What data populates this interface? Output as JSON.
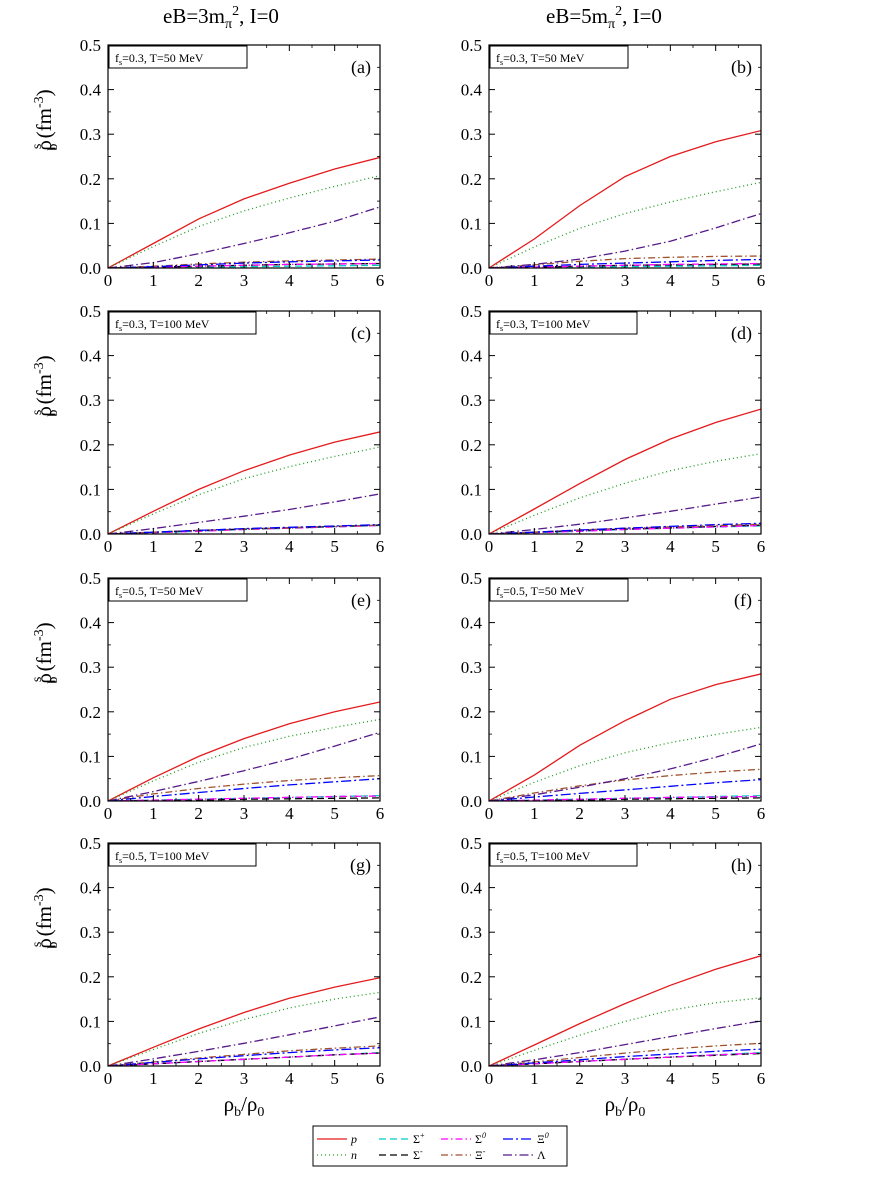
{
  "column_titles": [
    {
      "base": "eB=3m",
      "sub": "π",
      "sup": "2",
      "tail": ", I=0"
    },
    {
      "base": "eB=5m",
      "sub": "π",
      "sup": "2",
      "tail": ", I=0"
    }
  ],
  "axes": {
    "xlabel": {
      "main": "ρ",
      "sub1": "b",
      "slash": "/ρ",
      "sub2": "0"
    },
    "ylabel": {
      "main": "ρ",
      "sup": "s",
      "sub": "b",
      "unit": " (fm",
      "unit_sup": "-3",
      "close": ")"
    },
    "xlim": [
      0,
      6
    ],
    "ylim": [
      0,
      0.5
    ],
    "xticks": [
      "0",
      "1",
      "2",
      "3",
      "4",
      "5",
      "6"
    ],
    "yticks": [
      "0.0",
      "0.1",
      "0.2",
      "0.3",
      "0.4",
      "0.5"
    ]
  },
  "legend": [
    {
      "label": "p",
      "color": "#e41a1c",
      "dash": ""
    },
    {
      "label": "n",
      "color": "#1a9a1a",
      "dash": "1,3"
    },
    {
      "label": "Σ+",
      "color": "#00cccc",
      "dash": "7,4"
    },
    {
      "label": "Σ-",
      "color": "#000000",
      "dash": "7,4"
    },
    {
      "label": "Σ0",
      "color": "#ff00ff",
      "dash": "7,3,1.5,3"
    },
    {
      "label": "Ξ-",
      "color": "#a0522d",
      "dash": "7,3,1.5,3"
    },
    {
      "label": "Ξ0",
      "color": "#0000ff",
      "dash": "10,3,2,3"
    },
    {
      "label": "Λ",
      "color": "#551a8b",
      "dash": "9,3,1.5,3"
    }
  ],
  "chart_data": [
    {
      "type": "line",
      "panel": "(a)",
      "annotation": {
        "f_label": "f",
        "f_sub": "s",
        "text": "=0.3, T=50 MeV"
      },
      "x": [
        0,
        1,
        2,
        3,
        4,
        5,
        6
      ],
      "series": [
        {
          "name": "p",
          "values": [
            0,
            0.055,
            0.11,
            0.155,
            0.19,
            0.222,
            0.248
          ]
        },
        {
          "name": "n",
          "values": [
            0,
            0.048,
            0.093,
            0.128,
            0.157,
            0.183,
            0.207
          ]
        },
        {
          "name": "Σ+",
          "values": [
            0,
            0.001,
            0.002,
            0.003,
            0.004,
            0.005,
            0.006
          ]
        },
        {
          "name": "Σ-",
          "values": [
            0,
            0.002,
            0.004,
            0.006,
            0.008,
            0.009,
            0.01
          ]
        },
        {
          "name": "Σ0",
          "values": [
            0,
            0.002,
            0.004,
            0.006,
            0.008,
            0.009,
            0.01
          ]
        },
        {
          "name": "Ξ-",
          "values": [
            0,
            0.004,
            0.009,
            0.013,
            0.016,
            0.018,
            0.02
          ]
        },
        {
          "name": "Ξ0",
          "values": [
            0,
            0.003,
            0.007,
            0.011,
            0.014,
            0.016,
            0.018
          ]
        },
        {
          "name": "Λ",
          "values": [
            0,
            0.012,
            0.032,
            0.055,
            0.079,
            0.105,
            0.137
          ]
        }
      ]
    },
    {
      "type": "line",
      "panel": "(b)",
      "annotation": {
        "f_label": "f",
        "f_sub": "s",
        "text": "=0.3, T=50 MeV"
      },
      "x": [
        0,
        1,
        2,
        3,
        4,
        5,
        6
      ],
      "series": [
        {
          "name": "p",
          "values": [
            0,
            0.065,
            0.14,
            0.205,
            0.25,
            0.283,
            0.308
          ]
        },
        {
          "name": "n",
          "values": [
            0,
            0.047,
            0.089,
            0.122,
            0.148,
            0.171,
            0.192
          ]
        },
        {
          "name": "Σ+",
          "values": [
            0,
            0.001,
            0.002,
            0.003,
            0.004,
            0.005,
            0.006
          ]
        },
        {
          "name": "Σ-",
          "values": [
            0,
            0.002,
            0.004,
            0.006,
            0.007,
            0.008,
            0.009
          ]
        },
        {
          "name": "Σ0",
          "values": [
            0,
            0.002,
            0.004,
            0.006,
            0.008,
            0.009,
            0.01
          ]
        },
        {
          "name": "Ξ-",
          "values": [
            0,
            0.007,
            0.015,
            0.021,
            0.024,
            0.026,
            0.027
          ]
        },
        {
          "name": "Ξ0",
          "values": [
            0,
            0.004,
            0.008,
            0.011,
            0.014,
            0.017,
            0.019
          ]
        },
        {
          "name": "Λ",
          "values": [
            0,
            0.008,
            0.02,
            0.038,
            0.06,
            0.09,
            0.122
          ]
        }
      ]
    },
    {
      "type": "line",
      "panel": "(c)",
      "annotation": {
        "f_label": "f",
        "f_sub": "s",
        "text": "=0.3, T=100 MeV"
      },
      "x": [
        0,
        1,
        2,
        3,
        4,
        5,
        6
      ],
      "series": [
        {
          "name": "p",
          "values": [
            0,
            0.051,
            0.1,
            0.142,
            0.177,
            0.206,
            0.229
          ]
        },
        {
          "name": "n",
          "values": [
            0,
            0.045,
            0.088,
            0.124,
            0.151,
            0.174,
            0.195
          ]
        },
        {
          "name": "Σ+",
          "values": [
            0,
            0.003,
            0.006,
            0.01,
            0.013,
            0.016,
            0.019
          ]
        },
        {
          "name": "Σ-",
          "values": [
            0,
            0.004,
            0.008,
            0.011,
            0.014,
            0.017,
            0.02
          ]
        },
        {
          "name": "Σ0",
          "values": [
            0,
            0.003,
            0.006,
            0.01,
            0.013,
            0.016,
            0.019
          ]
        },
        {
          "name": "Ξ-",
          "values": [
            0,
            0.004,
            0.008,
            0.011,
            0.014,
            0.017,
            0.02
          ]
        },
        {
          "name": "Ξ0",
          "values": [
            0,
            0.004,
            0.008,
            0.012,
            0.015,
            0.018,
            0.021
          ]
        },
        {
          "name": "Λ",
          "values": [
            0,
            0.012,
            0.026,
            0.04,
            0.055,
            0.072,
            0.09
          ]
        }
      ]
    },
    {
      "type": "line",
      "panel": "(d)",
      "annotation": {
        "f_label": "f",
        "f_sub": "s",
        "text": "=0.3, T=100 MeV"
      },
      "x": [
        0,
        1,
        2,
        3,
        4,
        5,
        6
      ],
      "series": [
        {
          "name": "p",
          "values": [
            0,
            0.056,
            0.113,
            0.167,
            0.213,
            0.25,
            0.28
          ]
        },
        {
          "name": "n",
          "values": [
            0,
            0.042,
            0.081,
            0.114,
            0.142,
            0.163,
            0.18
          ]
        },
        {
          "name": "Σ+",
          "values": [
            0,
            0.003,
            0.006,
            0.01,
            0.013,
            0.016,
            0.018
          ]
        },
        {
          "name": "Σ-",
          "values": [
            0,
            0.004,
            0.008,
            0.011,
            0.014,
            0.017,
            0.02
          ]
        },
        {
          "name": "Σ0",
          "values": [
            0,
            0.003,
            0.006,
            0.01,
            0.013,
            0.016,
            0.019
          ]
        },
        {
          "name": "Ξ-",
          "values": [
            0,
            0.004,
            0.009,
            0.013,
            0.016,
            0.019,
            0.022
          ]
        },
        {
          "name": "Ξ0",
          "values": [
            0,
            0.004,
            0.009,
            0.013,
            0.017,
            0.021,
            0.024
          ]
        },
        {
          "name": "Λ",
          "values": [
            0,
            0.01,
            0.022,
            0.036,
            0.051,
            0.067,
            0.083
          ]
        }
      ]
    },
    {
      "type": "line",
      "panel": "(e)",
      "annotation": {
        "f_label": "f",
        "f_sub": "s",
        "text": "=0.5, T=50 MeV"
      },
      "x": [
        0,
        1,
        2,
        3,
        4,
        5,
        6
      ],
      "series": [
        {
          "name": "p",
          "values": [
            0,
            0.052,
            0.1,
            0.14,
            0.173,
            0.2,
            0.222
          ]
        },
        {
          "name": "n",
          "values": [
            0,
            0.045,
            0.087,
            0.12,
            0.145,
            0.165,
            0.183
          ]
        },
        {
          "name": "Σ+",
          "values": [
            0,
            0.002,
            0.004,
            0.006,
            0.008,
            0.01,
            0.012
          ]
        },
        {
          "name": "Σ-",
          "values": [
            0,
            0.001,
            0.002,
            0.004,
            0.005,
            0.006,
            0.007
          ]
        },
        {
          "name": "Σ0",
          "values": [
            0,
            0.002,
            0.004,
            0.006,
            0.008,
            0.01,
            0.011
          ]
        },
        {
          "name": "Ξ-",
          "values": [
            0,
            0.016,
            0.028,
            0.038,
            0.046,
            0.052,
            0.057
          ]
        },
        {
          "name": "Ξ0",
          "values": [
            0,
            0.01,
            0.019,
            0.028,
            0.036,
            0.043,
            0.05
          ]
        },
        {
          "name": "Λ",
          "values": [
            0,
            0.021,
            0.044,
            0.068,
            0.094,
            0.123,
            0.154
          ]
        }
      ]
    },
    {
      "type": "line",
      "panel": "(f)",
      "annotation": {
        "f_label": "f",
        "f_sub": "s",
        "text": "=0.5, T=50 MeV"
      },
      "x": [
        0,
        1,
        2,
        3,
        4,
        5,
        6
      ],
      "series": [
        {
          "name": "p",
          "values": [
            0,
            0.058,
            0.125,
            0.18,
            0.228,
            0.261,
            0.285
          ]
        },
        {
          "name": "n",
          "values": [
            0,
            0.042,
            0.079,
            0.108,
            0.131,
            0.149,
            0.165
          ]
        },
        {
          "name": "Σ+",
          "values": [
            0,
            0.002,
            0.004,
            0.006,
            0.008,
            0.01,
            0.012
          ]
        },
        {
          "name": "Σ-",
          "values": [
            0,
            0.001,
            0.002,
            0.004,
            0.005,
            0.006,
            0.007
          ]
        },
        {
          "name": "Σ0",
          "values": [
            0,
            0.002,
            0.004,
            0.006,
            0.008,
            0.009,
            0.01
          ]
        },
        {
          "name": "Ξ-",
          "values": [
            0,
            0.018,
            0.034,
            0.047,
            0.057,
            0.065,
            0.071
          ]
        },
        {
          "name": "Ξ0",
          "values": [
            0,
            0.009,
            0.017,
            0.025,
            0.033,
            0.041,
            0.048
          ]
        },
        {
          "name": "Λ",
          "values": [
            0,
            0.014,
            0.031,
            0.05,
            0.072,
            0.098,
            0.128
          ]
        }
      ]
    },
    {
      "type": "line",
      "panel": "(g)",
      "annotation": {
        "f_label": "f",
        "f_sub": "s",
        "text": "=0.5, T=100 MeV"
      },
      "x": [
        0,
        1,
        2,
        3,
        4,
        5,
        6
      ],
      "series": [
        {
          "name": "p",
          "values": [
            0,
            0.042,
            0.083,
            0.12,
            0.152,
            0.177,
            0.198
          ]
        },
        {
          "name": "n",
          "values": [
            0,
            0.037,
            0.073,
            0.104,
            0.13,
            0.15,
            0.165
          ]
        },
        {
          "name": "Σ+",
          "values": [
            0,
            0.005,
            0.01,
            0.015,
            0.02,
            0.025,
            0.03
          ]
        },
        {
          "name": "Σ-",
          "values": [
            0,
            0.005,
            0.01,
            0.015,
            0.02,
            0.025,
            0.029
          ]
        },
        {
          "name": "Σ0",
          "values": [
            0,
            0.005,
            0.01,
            0.015,
            0.02,
            0.025,
            0.029
          ]
        },
        {
          "name": "Ξ-",
          "values": [
            0,
            0.009,
            0.018,
            0.026,
            0.034,
            0.04,
            0.045
          ]
        },
        {
          "name": "Ξ0",
          "values": [
            0,
            0.008,
            0.016,
            0.023,
            0.03,
            0.036,
            0.041
          ]
        },
        {
          "name": "Λ",
          "values": [
            0,
            0.016,
            0.033,
            0.051,
            0.07,
            0.09,
            0.11
          ]
        }
      ]
    },
    {
      "type": "line",
      "panel": "(h)",
      "annotation": {
        "f_label": "f",
        "f_sub": "s",
        "text": "=0.5, T=100 MeV"
      },
      "x": [
        0,
        1,
        2,
        3,
        4,
        5,
        6
      ],
      "series": [
        {
          "name": "p",
          "values": [
            0,
            0.047,
            0.095,
            0.14,
            0.181,
            0.217,
            0.247
          ]
        },
        {
          "name": "n",
          "values": [
            0,
            0.035,
            0.069,
            0.1,
            0.125,
            0.142,
            0.153
          ]
        },
        {
          "name": "Σ+",
          "values": [
            0,
            0.005,
            0.01,
            0.015,
            0.02,
            0.025,
            0.03
          ]
        },
        {
          "name": "Σ-",
          "values": [
            0,
            0.005,
            0.01,
            0.015,
            0.02,
            0.024,
            0.028
          ]
        },
        {
          "name": "Σ0",
          "values": [
            0,
            0.005,
            0.01,
            0.015,
            0.02,
            0.025,
            0.029
          ]
        },
        {
          "name": "Ξ-",
          "values": [
            0,
            0.009,
            0.019,
            0.029,
            0.038,
            0.045,
            0.051
          ]
        },
        {
          "name": "Ξ0",
          "values": [
            0,
            0.007,
            0.014,
            0.021,
            0.027,
            0.033,
            0.038
          ]
        },
        {
          "name": "Λ",
          "values": [
            0,
            0.014,
            0.03,
            0.048,
            0.066,
            0.084,
            0.101
          ]
        }
      ]
    }
  ]
}
